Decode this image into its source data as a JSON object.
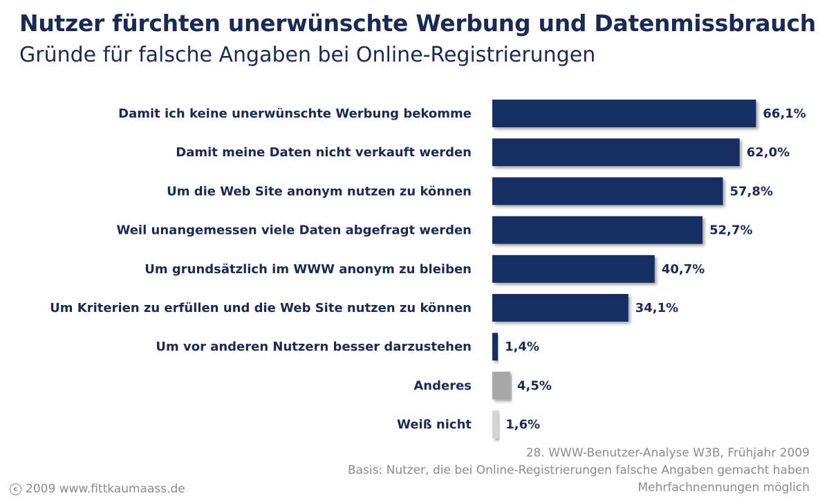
{
  "header": {
    "title": "Nutzer fürchten unerwünschte Werbung und Datenmissbrauch",
    "subtitle": "Gründe für falsche Angaben bei Online-Registrierungen"
  },
  "footer": {
    "source_line1": "28. WWW-Benutzer-Analyse W3B, Frühjahr 2009",
    "source_line2": "Basis: Nutzer, die bei Online-Registrierungen falsche Angaben gemacht haben",
    "source_line3": "Mehrfachnennungen möglich",
    "copyright": "2009 www.fittkaumaass.de",
    "copyright_icon": "copyright-icon"
  },
  "chart_data": {
    "type": "bar",
    "orientation": "horizontal",
    "title": "Nutzer fürchten unerwünschte Werbung und Datenmissbrauch",
    "subtitle": "Gründe für falsche Angaben bei Online-Registrierungen",
    "categories": [
      "Damit ich keine unerwünschte Werbung bekomme",
      "Damit meine Daten nicht verkauft werden",
      "Um die Web Site anonym nutzen zu können",
      "Weil unangemessen viele Daten abgefragt werden",
      "Um grundsätzlich im WWW anonym zu bleiben",
      "Um Kriterien zu erfüllen und die Web Site nutzen zu können",
      "Um vor anderen Nutzern besser darzustehen",
      "Anderes",
      "Weiß nicht"
    ],
    "values": [
      66.1,
      62.0,
      57.8,
      52.7,
      40.7,
      34.1,
      1.4,
      4.5,
      1.6
    ],
    "value_labels": [
      "66,1%",
      "62,0%",
      "57,8%",
      "52,7%",
      "40,7%",
      "34,1%",
      "1,4%",
      "4,5%",
      "1,6%"
    ],
    "bar_colors": [
      "#152e62",
      "#152e62",
      "#152e62",
      "#152e62",
      "#152e62",
      "#152e62",
      "#152e62",
      "#a6a6a6",
      "#d4d4d4"
    ],
    "unit": "%",
    "xlim": [
      0,
      100
    ],
    "grid": false,
    "legend": "none"
  }
}
